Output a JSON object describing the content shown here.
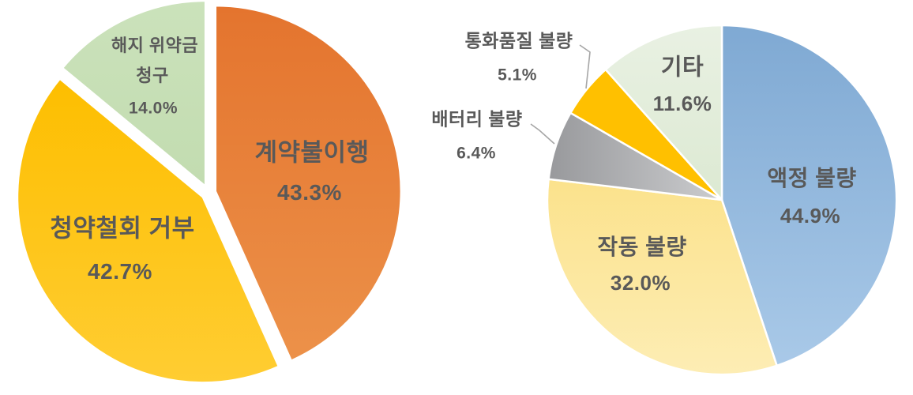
{
  "page": {
    "background_color": "#ffffff",
    "text_color": "#595959"
  },
  "chart_data": [
    {
      "type": "pie",
      "title": "",
      "position": "left",
      "start_angle_deg": 0,
      "direction": "clockwise",
      "exploded": true,
      "legend": "none",
      "data_labels": "category name and percent, inside slices",
      "slices": [
        {
          "label": "계약불이행",
          "value": 43.3,
          "pct_label": "43.3%",
          "color": "#E8793A",
          "gradient": [
            "#E4742E",
            "#EC9149"
          ]
        },
        {
          "label": "청약철회 거부",
          "value": 42.7,
          "pct_label": "42.7%",
          "color": "#FFC000",
          "gradient": [
            "#FDBE00",
            "#FFCD32"
          ]
        },
        {
          "label": "해지 위약금 청구",
          "label_lines": [
            "해지 위약금",
            "청구"
          ],
          "value": 14.0,
          "pct_label": "14.0%",
          "color": "#C6DFB5",
          "gradient": [
            "#CBE2BB",
            "#C2DCB0"
          ]
        }
      ]
    },
    {
      "type": "pie",
      "title": "",
      "position": "right",
      "start_angle_deg": 0,
      "direction": "clockwise",
      "exploded": false,
      "legend": "none",
      "data_labels": "category name and percent; small slices labeled outside with leader lines",
      "leader_line_color": "#A6A6A6",
      "slices": [
        {
          "label": "액정 불량",
          "value": 44.9,
          "pct_label": "44.9%",
          "color": "#8FB6DE",
          "gradient": [
            "#7FA9D3",
            "#A9C9E8"
          ]
        },
        {
          "label": "작동 불량",
          "value": 32.0,
          "pct_label": "32.0%",
          "color": "#FFE699",
          "gradient": [
            "#FBE28C",
            "#FDEDB4"
          ]
        },
        {
          "label": "배터리 불량",
          "value": 6.4,
          "pct_label": "6.4%",
          "color": "#ABABAB",
          "gradient": [
            "#98999C",
            "#CBCCCE"
          ],
          "gradient_dir": "horizontal",
          "label_outside": true
        },
        {
          "label": "통화품질 불량",
          "value": 5.1,
          "pct_label": "5.1%",
          "color": "#FFC000",
          "label_outside": true
        },
        {
          "label": "기타",
          "value": 11.6,
          "pct_label": "11.6%",
          "color": "#E3EEDC",
          "gradient": [
            "#E9F1E3",
            "#DCE9D2"
          ]
        }
      ]
    }
  ]
}
